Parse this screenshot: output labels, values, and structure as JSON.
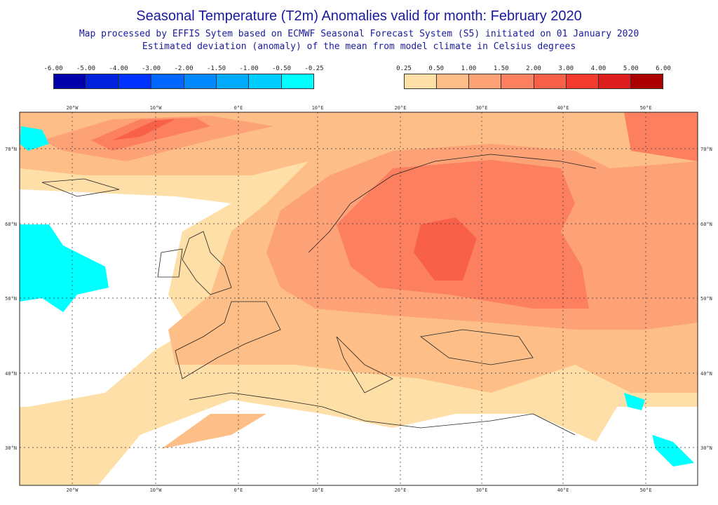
{
  "header": {
    "title": "Seasonal Temperature (T2m) Anomalies valid for month: February 2020",
    "subtitle1": "Map processed by EFFIS Sytem based on ECMWF Seasonal Forecast System (S5) initiated on 01 January 2020",
    "subtitle2": "Estimated deviation (anomaly) of the mean from model climate in Celsius degrees"
  },
  "legend_negative": {
    "labels": [
      "-6.00",
      "-5.00",
      "-4.00",
      "-3.00",
      "-2.00",
      "-1.50",
      "-1.00",
      "-0.50",
      "-0.25"
    ],
    "colors": [
      "#0000aa",
      "#0022dd",
      "#0033ff",
      "#0066ff",
      "#0088ff",
      "#00aaff",
      "#00ccff",
      "#00ffff"
    ]
  },
  "legend_positive": {
    "labels": [
      "0.25",
      "0.50",
      "1.00",
      "1.50",
      "2.00",
      "3.00",
      "4.00",
      "5.00",
      "6.00"
    ],
    "colors": [
      "#fedfa8",
      "#fdbf87",
      "#fda277",
      "#fc8060",
      "#f86048",
      "#f53a30",
      "#dc1e1e",
      "#aa0000"
    ]
  },
  "map": {
    "lon_labels": [
      "20°W",
      "10°W",
      "0°E",
      "10°E",
      "20°E",
      "30°E",
      "40°E",
      "50°E"
    ],
    "lat_labels": [
      "70°N",
      "60°N",
      "50°N",
      "40°N",
      "30°N"
    ]
  }
}
